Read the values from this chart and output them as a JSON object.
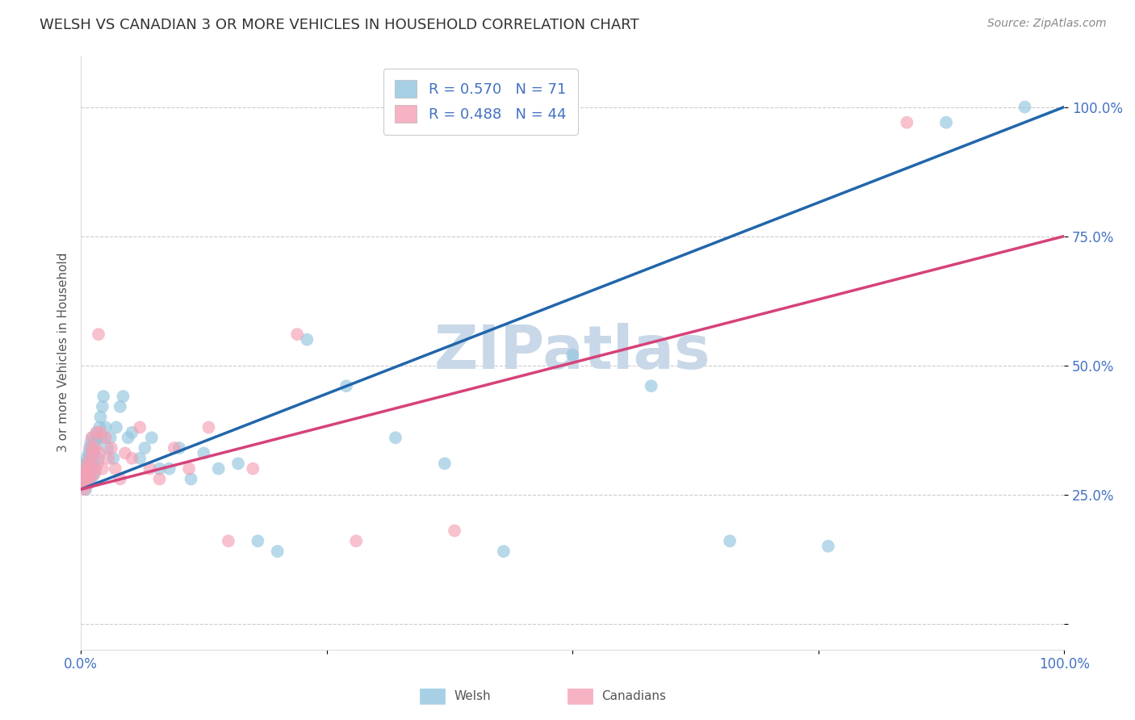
{
  "title": "WELSH VS CANADIAN 3 OR MORE VEHICLES IN HOUSEHOLD CORRELATION CHART",
  "source": "Source: ZipAtlas.com",
  "ylabel": "3 or more Vehicles in Household",
  "xlim": [
    0.0,
    1.0
  ],
  "ylim": [
    -0.05,
    1.1
  ],
  "yticks": [
    0.0,
    0.25,
    0.5,
    0.75,
    1.0
  ],
  "ytick_labels": [
    "",
    "25.0%",
    "50.0%",
    "75.0%",
    "100.0%"
  ],
  "legend_blue_r": "0.570",
  "legend_blue_n": "71",
  "legend_pink_r": "0.488",
  "legend_pink_n": "44",
  "blue_color": "#92c5de",
  "pink_color": "#f4a0b5",
  "blue_line_color": "#2166ac",
  "pink_line_color": "#d6427a",
  "watermark": "ZIPatlas",
  "watermark_color": "#c8d8e8",
  "background_color": "#ffffff",
  "title_color": "#333333",
  "axis_label_color": "#555555",
  "tick_label_color": "#4472c4",
  "grid_color": "#cccccc",
  "blue_line_x0": 0.0,
  "blue_line_y0": 0.26,
  "blue_line_x1": 1.0,
  "blue_line_y1": 1.0,
  "pink_line_x0": 0.0,
  "pink_line_y0": 0.26,
  "pink_line_x1": 1.0,
  "pink_line_y1": 0.75,
  "welsh_x": [
    0.003,
    0.004,
    0.004,
    0.005,
    0.005,
    0.005,
    0.006,
    0.006,
    0.006,
    0.007,
    0.007,
    0.007,
    0.008,
    0.008,
    0.008,
    0.008,
    0.009,
    0.009,
    0.009,
    0.01,
    0.01,
    0.01,
    0.011,
    0.011,
    0.012,
    0.012,
    0.013,
    0.013,
    0.014,
    0.015,
    0.015,
    0.016,
    0.017,
    0.018,
    0.019,
    0.02,
    0.021,
    0.022,
    0.023,
    0.025,
    0.027,
    0.03,
    0.033,
    0.036,
    0.04,
    0.043,
    0.048,
    0.052,
    0.06,
    0.065,
    0.072,
    0.08,
    0.09,
    0.1,
    0.112,
    0.125,
    0.14,
    0.16,
    0.18,
    0.2,
    0.23,
    0.27,
    0.32,
    0.37,
    0.43,
    0.5,
    0.58,
    0.66,
    0.76,
    0.88,
    0.96
  ],
  "welsh_y": [
    0.28,
    0.3,
    0.27,
    0.29,
    0.31,
    0.26,
    0.3,
    0.28,
    0.32,
    0.29,
    0.31,
    0.27,
    0.3,
    0.28,
    0.33,
    0.29,
    0.31,
    0.34,
    0.28,
    0.32,
    0.3,
    0.35,
    0.33,
    0.28,
    0.31,
    0.36,
    0.34,
    0.29,
    0.33,
    0.35,
    0.3,
    0.37,
    0.36,
    0.32,
    0.38,
    0.4,
    0.36,
    0.42,
    0.44,
    0.38,
    0.34,
    0.36,
    0.32,
    0.38,
    0.42,
    0.44,
    0.36,
    0.37,
    0.32,
    0.34,
    0.36,
    0.3,
    0.3,
    0.34,
    0.28,
    0.33,
    0.3,
    0.31,
    0.16,
    0.14,
    0.55,
    0.46,
    0.36,
    0.31,
    0.14,
    0.52,
    0.46,
    0.16,
    0.15,
    0.97,
    1.0
  ],
  "canadian_x": [
    0.003,
    0.004,
    0.004,
    0.005,
    0.005,
    0.006,
    0.006,
    0.007,
    0.007,
    0.008,
    0.008,
    0.009,
    0.009,
    0.01,
    0.011,
    0.012,
    0.013,
    0.014,
    0.015,
    0.016,
    0.017,
    0.018,
    0.019,
    0.02,
    0.022,
    0.025,
    0.028,
    0.031,
    0.035,
    0.04,
    0.045,
    0.052,
    0.06,
    0.07,
    0.08,
    0.095,
    0.11,
    0.13,
    0.15,
    0.175,
    0.22,
    0.28,
    0.38,
    0.84
  ],
  "canadian_y": [
    0.27,
    0.29,
    0.26,
    0.3,
    0.28,
    0.29,
    0.27,
    0.31,
    0.28,
    0.3,
    0.29,
    0.32,
    0.28,
    0.34,
    0.36,
    0.3,
    0.33,
    0.29,
    0.34,
    0.37,
    0.31,
    0.56,
    0.33,
    0.37,
    0.3,
    0.36,
    0.32,
    0.34,
    0.3,
    0.28,
    0.33,
    0.32,
    0.38,
    0.3,
    0.28,
    0.34,
    0.3,
    0.38,
    0.16,
    0.3,
    0.56,
    0.16,
    0.18,
    0.97
  ]
}
